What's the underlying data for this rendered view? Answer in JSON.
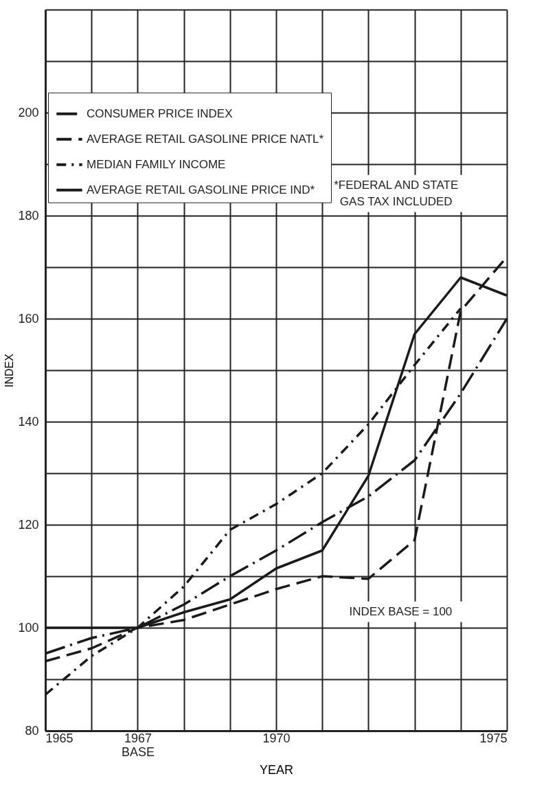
{
  "chart_data": {
    "type": "line",
    "xlabel": "YEAR",
    "ylabel": "INDEX",
    "x": [
      1965,
      1966,
      1967,
      1968,
      1969,
      1970,
      1971,
      1972,
      1973,
      1974,
      1975
    ],
    "series": [
      {
        "name": "CONSUMER PRICE INDEX",
        "color": "#1a1a1a",
        "line_style": "longdashdot",
        "values": [
          95,
          98,
          100,
          104.5,
          110,
          115,
          120.5,
          125.5,
          132.5,
          145.5,
          160
        ]
      },
      {
        "name": "AVERAGE RETAIL GASOLINE PRICE NATL*",
        "color": "#1a1a1a",
        "line_style": "dashed",
        "values": [
          93.5,
          96,
          100,
          101.5,
          104.5,
          107.5,
          110,
          109.5,
          117,
          161.5,
          172
        ]
      },
      {
        "name": "MEDIAN FAMILY INCOME",
        "color": "#1a1a1a",
        "line_style": "dashdot",
        "values": [
          87,
          94.5,
          100,
          108,
          119,
          124,
          130,
          139.5,
          151,
          162,
          null
        ]
      },
      {
        "name": "AVERAGE RETAIL GASOLINE PRICE IND*",
        "color": "#1a1a1a",
        "line_style": "solid",
        "values": [
          100,
          100,
          100,
          103,
          105.5,
          111.5,
          115,
          129.5,
          157,
          168,
          164.5
        ]
      }
    ],
    "xlim": [
      1965,
      1975
    ],
    "xticks": [
      1965,
      {
        "value": 1966,
        "label": null
      },
      {
        "value": 1967,
        "label": "1967\nBASE"
      },
      {
        "value": 1968,
        "label": null
      },
      {
        "value": 1969,
        "label": null
      },
      1970,
      {
        "value": 1971,
        "label": null
      },
      {
        "value": 1972,
        "label": null
      },
      {
        "value": 1973,
        "label": null
      },
      {
        "value": 1974,
        "label": null
      },
      1975
    ],
    "ylim": [
      80,
      220
    ],
    "yticks": [
      80,
      {
        "value": 90,
        "label": null
      },
      100,
      {
        "value": 110,
        "label": null
      },
      120,
      {
        "value": 130,
        "label": null
      },
      140,
      {
        "value": 150,
        "label": null
      },
      160,
      {
        "value": 170,
        "label": null
      },
      180,
      {
        "value": 190,
        "label": null
      },
      200,
      {
        "value": 210,
        "label": null
      },
      {
        "value": 220,
        "label": null
      }
    ],
    "grid": true,
    "legend": "top left",
    "marker": "none",
    "annotations": [
      "*FEDERAL AND STATE\nGAS TAX INCLUDED",
      "INDEX BASE = 100"
    ]
  }
}
